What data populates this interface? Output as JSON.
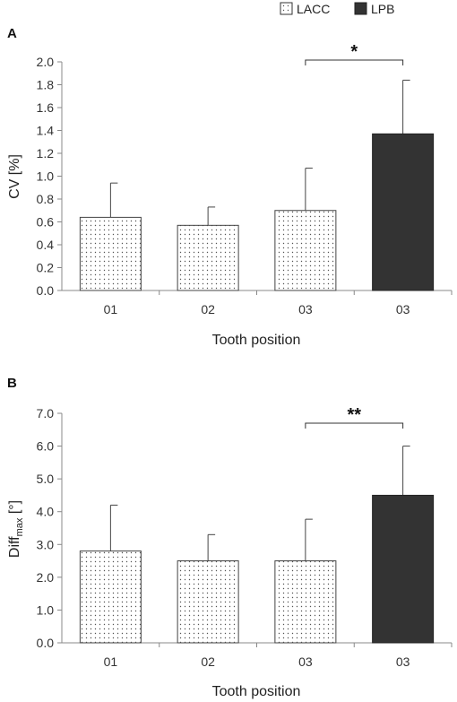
{
  "legend": [
    {
      "name": "LACC",
      "fill": "dotted"
    },
    {
      "name": "LPB",
      "fill": "#333333"
    }
  ],
  "colors": {
    "lpb": "#333333",
    "lacc_bg": "#ffffff",
    "dot": "#555555",
    "axis": "#888888"
  },
  "chart_data": [
    {
      "type": "bar",
      "panel_label": "A",
      "categories": [
        "01",
        "02",
        "03",
        "03"
      ],
      "groups": [
        "LACC",
        "LACC",
        "LACC",
        "LPB"
      ],
      "values": [
        0.64,
        0.57,
        0.7,
        1.37
      ],
      "errors": [
        0.3,
        0.16,
        0.37,
        0.47
      ],
      "xlabel": "Tooth position",
      "ylabel": "CV [%]",
      "ylim": [
        0,
        2.0
      ],
      "yticks": [
        "0.0",
        "0.2",
        "0.4",
        "0.6",
        "0.8",
        "1.0",
        "1.2",
        "1.4",
        "1.6",
        "1.8",
        "2.0"
      ],
      "significance": {
        "from": 2,
        "to": 3,
        "label": "*"
      }
    },
    {
      "type": "bar",
      "panel_label": "B",
      "categories": [
        "01",
        "02",
        "03",
        "03"
      ],
      "groups": [
        "LACC",
        "LACC",
        "LACC",
        "LPB"
      ],
      "values": [
        2.8,
        2.5,
        2.5,
        4.5
      ],
      "errors": [
        1.4,
        0.8,
        1.27,
        1.5
      ],
      "xlabel": "Tooth position",
      "ylabel_main": "Diff",
      "ylabel_sub": "max",
      "ylabel_unit": " [°]",
      "ylim": [
        0,
        7.0
      ],
      "yticks": [
        "0.0",
        "1.0",
        "2.0",
        "3.0",
        "4.0",
        "5.0",
        "6.0",
        "7.0"
      ],
      "significance": {
        "from": 2,
        "to": 3,
        "label": "**"
      }
    }
  ]
}
